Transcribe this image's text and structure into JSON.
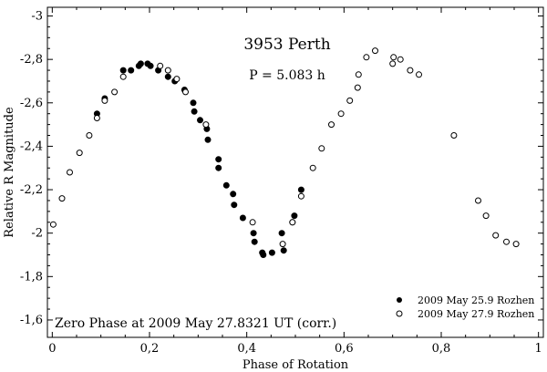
{
  "chart_data": {
    "type": "scatter",
    "title": "3953 Perth",
    "annotations": {
      "period": "P = 5.083 h",
      "zero_phase": "Zero Phase at 2009 May 27.8321 UT (corr.)"
    },
    "xlabel": "Phase of Rotation",
    "ylabel": "Relative R Magnitude",
    "xlim": [
      -0.01,
      1.01
    ],
    "ylim": [
      -1.52,
      -3.04
    ],
    "x_ticks": [
      {
        "value": 0,
        "label": "0"
      },
      {
        "value": 0.2,
        "label": "0,2"
      },
      {
        "value": 0.4,
        "label": "0,4"
      },
      {
        "value": 0.6,
        "label": "0,6"
      },
      {
        "value": 0.8,
        "label": "0,8"
      },
      {
        "value": 1,
        "label": "1"
      }
    ],
    "y_ticks": [
      {
        "value": -1.6,
        "label": "-1,6"
      },
      {
        "value": -1.8,
        "label": "-1,8"
      },
      {
        "value": -2.0,
        "label": "-2"
      },
      {
        "value": -2.2,
        "label": "-2,2"
      },
      {
        "value": -2.4,
        "label": "-2,4"
      },
      {
        "value": -2.6,
        "label": "-2,6"
      },
      {
        "value": -2.8,
        "label": "-2,8"
      },
      {
        "value": -3.0,
        "label": "-3"
      }
    ],
    "grid": false,
    "legend_position": "bottom-right",
    "series": [
      {
        "name": "2009 May 25.9 Rozhen",
        "marker": "filled-circle",
        "points": [
          [
            0.092,
            -2.55
          ],
          [
            0.108,
            -2.62
          ],
          [
            0.146,
            -2.75
          ],
          [
            0.162,
            -2.75
          ],
          [
            0.178,
            -2.77
          ],
          [
            0.182,
            -2.78
          ],
          [
            0.196,
            -2.78
          ],
          [
            0.202,
            -2.77
          ],
          [
            0.218,
            -2.75
          ],
          [
            0.238,
            -2.72
          ],
          [
            0.252,
            -2.7
          ],
          [
            0.272,
            -2.66
          ],
          [
            0.29,
            -2.6
          ],
          [
            0.292,
            -2.56
          ],
          [
            0.304,
            -2.52
          ],
          [
            0.318,
            -2.48
          ],
          [
            0.32,
            -2.43
          ],
          [
            0.342,
            -2.34
          ],
          [
            0.342,
            -2.3
          ],
          [
            0.358,
            -2.22
          ],
          [
            0.372,
            -2.18
          ],
          [
            0.374,
            -2.13
          ],
          [
            0.392,
            -2.07
          ],
          [
            0.414,
            -2.0
          ],
          [
            0.416,
            -1.96
          ],
          [
            0.432,
            -1.91
          ],
          [
            0.434,
            -1.9
          ],
          [
            0.452,
            -1.91
          ],
          [
            0.472,
            -2.0
          ],
          [
            0.476,
            -1.92
          ],
          [
            0.494,
            -2.05
          ],
          [
            0.498,
            -2.08
          ],
          [
            0.512,
            -2.2
          ]
        ]
      },
      {
        "name": "2009 May 27.9 Rozhen",
        "marker": "open-circle",
        "points": [
          [
            0.002,
            -2.04
          ],
          [
            0.02,
            -2.16
          ],
          [
            0.036,
            -2.28
          ],
          [
            0.056,
            -2.37
          ],
          [
            0.076,
            -2.45
          ],
          [
            0.092,
            -2.53
          ],
          [
            0.108,
            -2.61
          ],
          [
            0.128,
            -2.65
          ],
          [
            0.146,
            -2.72
          ],
          [
            0.222,
            -2.77
          ],
          [
            0.238,
            -2.75
          ],
          [
            0.256,
            -2.71
          ],
          [
            0.274,
            -2.65
          ],
          [
            0.316,
            -2.5
          ],
          [
            0.412,
            -2.05
          ],
          [
            0.474,
            -1.95
          ],
          [
            0.494,
            -2.05
          ],
          [
            0.512,
            -2.17
          ],
          [
            0.536,
            -2.3
          ],
          [
            0.554,
            -2.39
          ],
          [
            0.574,
            -2.5
          ],
          [
            0.594,
            -2.55
          ],
          [
            0.612,
            -2.61
          ],
          [
            0.628,
            -2.67
          ],
          [
            0.63,
            -2.73
          ],
          [
            0.646,
            -2.81
          ],
          [
            0.664,
            -2.84
          ],
          [
            0.7,
            -2.78
          ],
          [
            0.702,
            -2.81
          ],
          [
            0.716,
            -2.8
          ],
          [
            0.736,
            -2.75
          ],
          [
            0.754,
            -2.73
          ],
          [
            0.826,
            -2.45
          ],
          [
            0.876,
            -2.15
          ],
          [
            0.892,
            -2.08
          ],
          [
            0.912,
            -1.99
          ],
          [
            0.934,
            -1.96
          ],
          [
            0.954,
            -1.95
          ]
        ]
      }
    ]
  }
}
